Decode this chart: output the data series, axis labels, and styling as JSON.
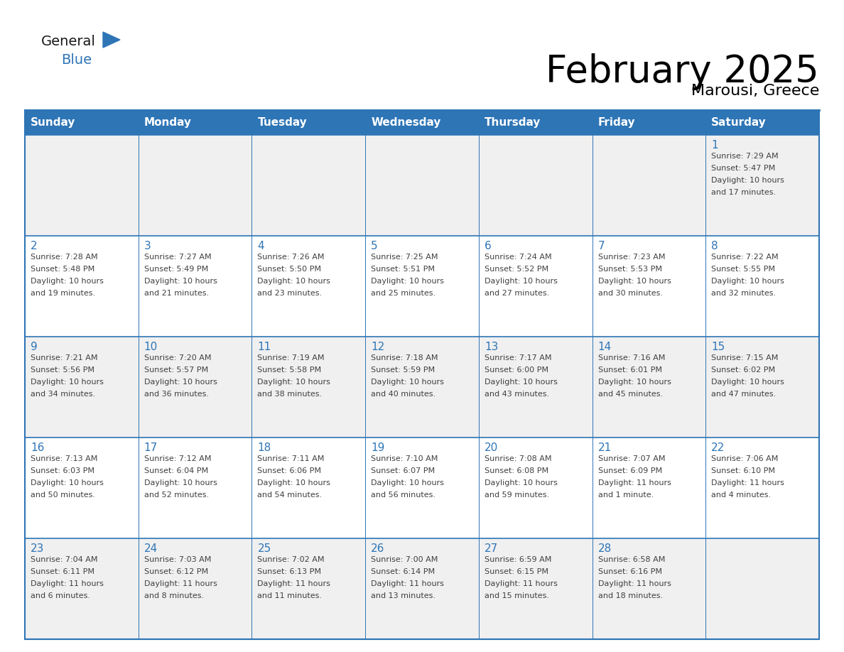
{
  "title": "February 2025",
  "subtitle": "Marousi, Greece",
  "header_bg_color": "#2E75B6",
  "header_text_color": "#FFFFFF",
  "cell_bg_color": "#FFFFFF",
  "cell_alt_bg_color": "#F0F0F0",
  "border_color": "#2E75B6",
  "day_number_color": "#2E75B6",
  "detail_text_color": "#404040",
  "weekdays": [
    "Sunday",
    "Monday",
    "Tuesday",
    "Wednesday",
    "Thursday",
    "Friday",
    "Saturday"
  ],
  "logo_general_color": "#1a1a1a",
  "logo_blue_color": "#2E75B6",
  "weeks": [
    [
      {
        "num": "",
        "sunrise": "",
        "sunset": "",
        "daylight": ""
      },
      {
        "num": "",
        "sunrise": "",
        "sunset": "",
        "daylight": ""
      },
      {
        "num": "",
        "sunrise": "",
        "sunset": "",
        "daylight": ""
      },
      {
        "num": "",
        "sunrise": "",
        "sunset": "",
        "daylight": ""
      },
      {
        "num": "",
        "sunrise": "",
        "sunset": "",
        "daylight": ""
      },
      {
        "num": "",
        "sunrise": "",
        "sunset": "",
        "daylight": ""
      },
      {
        "num": "1",
        "sunrise": "Sunrise: 7:29 AM",
        "sunset": "Sunset: 5:47 PM",
        "daylight": "Daylight: 10 hours\nand 17 minutes."
      }
    ],
    [
      {
        "num": "2",
        "sunrise": "Sunrise: 7:28 AM",
        "sunset": "Sunset: 5:48 PM",
        "daylight": "Daylight: 10 hours\nand 19 minutes."
      },
      {
        "num": "3",
        "sunrise": "Sunrise: 7:27 AM",
        "sunset": "Sunset: 5:49 PM",
        "daylight": "Daylight: 10 hours\nand 21 minutes."
      },
      {
        "num": "4",
        "sunrise": "Sunrise: 7:26 AM",
        "sunset": "Sunset: 5:50 PM",
        "daylight": "Daylight: 10 hours\nand 23 minutes."
      },
      {
        "num": "5",
        "sunrise": "Sunrise: 7:25 AM",
        "sunset": "Sunset: 5:51 PM",
        "daylight": "Daylight: 10 hours\nand 25 minutes."
      },
      {
        "num": "6",
        "sunrise": "Sunrise: 7:24 AM",
        "sunset": "Sunset: 5:52 PM",
        "daylight": "Daylight: 10 hours\nand 27 minutes."
      },
      {
        "num": "7",
        "sunrise": "Sunrise: 7:23 AM",
        "sunset": "Sunset: 5:53 PM",
        "daylight": "Daylight: 10 hours\nand 30 minutes."
      },
      {
        "num": "8",
        "sunrise": "Sunrise: 7:22 AM",
        "sunset": "Sunset: 5:55 PM",
        "daylight": "Daylight: 10 hours\nand 32 minutes."
      }
    ],
    [
      {
        "num": "9",
        "sunrise": "Sunrise: 7:21 AM",
        "sunset": "Sunset: 5:56 PM",
        "daylight": "Daylight: 10 hours\nand 34 minutes."
      },
      {
        "num": "10",
        "sunrise": "Sunrise: 7:20 AM",
        "sunset": "Sunset: 5:57 PM",
        "daylight": "Daylight: 10 hours\nand 36 minutes."
      },
      {
        "num": "11",
        "sunrise": "Sunrise: 7:19 AM",
        "sunset": "Sunset: 5:58 PM",
        "daylight": "Daylight: 10 hours\nand 38 minutes."
      },
      {
        "num": "12",
        "sunrise": "Sunrise: 7:18 AM",
        "sunset": "Sunset: 5:59 PM",
        "daylight": "Daylight: 10 hours\nand 40 minutes."
      },
      {
        "num": "13",
        "sunrise": "Sunrise: 7:17 AM",
        "sunset": "Sunset: 6:00 PM",
        "daylight": "Daylight: 10 hours\nand 43 minutes."
      },
      {
        "num": "14",
        "sunrise": "Sunrise: 7:16 AM",
        "sunset": "Sunset: 6:01 PM",
        "daylight": "Daylight: 10 hours\nand 45 minutes."
      },
      {
        "num": "15",
        "sunrise": "Sunrise: 7:15 AM",
        "sunset": "Sunset: 6:02 PM",
        "daylight": "Daylight: 10 hours\nand 47 minutes."
      }
    ],
    [
      {
        "num": "16",
        "sunrise": "Sunrise: 7:13 AM",
        "sunset": "Sunset: 6:03 PM",
        "daylight": "Daylight: 10 hours\nand 50 minutes."
      },
      {
        "num": "17",
        "sunrise": "Sunrise: 7:12 AM",
        "sunset": "Sunset: 6:04 PM",
        "daylight": "Daylight: 10 hours\nand 52 minutes."
      },
      {
        "num": "18",
        "sunrise": "Sunrise: 7:11 AM",
        "sunset": "Sunset: 6:06 PM",
        "daylight": "Daylight: 10 hours\nand 54 minutes."
      },
      {
        "num": "19",
        "sunrise": "Sunrise: 7:10 AM",
        "sunset": "Sunset: 6:07 PM",
        "daylight": "Daylight: 10 hours\nand 56 minutes."
      },
      {
        "num": "20",
        "sunrise": "Sunrise: 7:08 AM",
        "sunset": "Sunset: 6:08 PM",
        "daylight": "Daylight: 10 hours\nand 59 minutes."
      },
      {
        "num": "21",
        "sunrise": "Sunrise: 7:07 AM",
        "sunset": "Sunset: 6:09 PM",
        "daylight": "Daylight: 11 hours\nand 1 minute."
      },
      {
        "num": "22",
        "sunrise": "Sunrise: 7:06 AM",
        "sunset": "Sunset: 6:10 PM",
        "daylight": "Daylight: 11 hours\nand 4 minutes."
      }
    ],
    [
      {
        "num": "23",
        "sunrise": "Sunrise: 7:04 AM",
        "sunset": "Sunset: 6:11 PM",
        "daylight": "Daylight: 11 hours\nand 6 minutes."
      },
      {
        "num": "24",
        "sunrise": "Sunrise: 7:03 AM",
        "sunset": "Sunset: 6:12 PM",
        "daylight": "Daylight: 11 hours\nand 8 minutes."
      },
      {
        "num": "25",
        "sunrise": "Sunrise: 7:02 AM",
        "sunset": "Sunset: 6:13 PM",
        "daylight": "Daylight: 11 hours\nand 11 minutes."
      },
      {
        "num": "26",
        "sunrise": "Sunrise: 7:00 AM",
        "sunset": "Sunset: 6:14 PM",
        "daylight": "Daylight: 11 hours\nand 13 minutes."
      },
      {
        "num": "27",
        "sunrise": "Sunrise: 6:59 AM",
        "sunset": "Sunset: 6:15 PM",
        "daylight": "Daylight: 11 hours\nand 15 minutes."
      },
      {
        "num": "28",
        "sunrise": "Sunrise: 6:58 AM",
        "sunset": "Sunset: 6:16 PM",
        "daylight": "Daylight: 11 hours\nand 18 minutes."
      },
      {
        "num": "",
        "sunrise": "",
        "sunset": "",
        "daylight": ""
      }
    ]
  ]
}
